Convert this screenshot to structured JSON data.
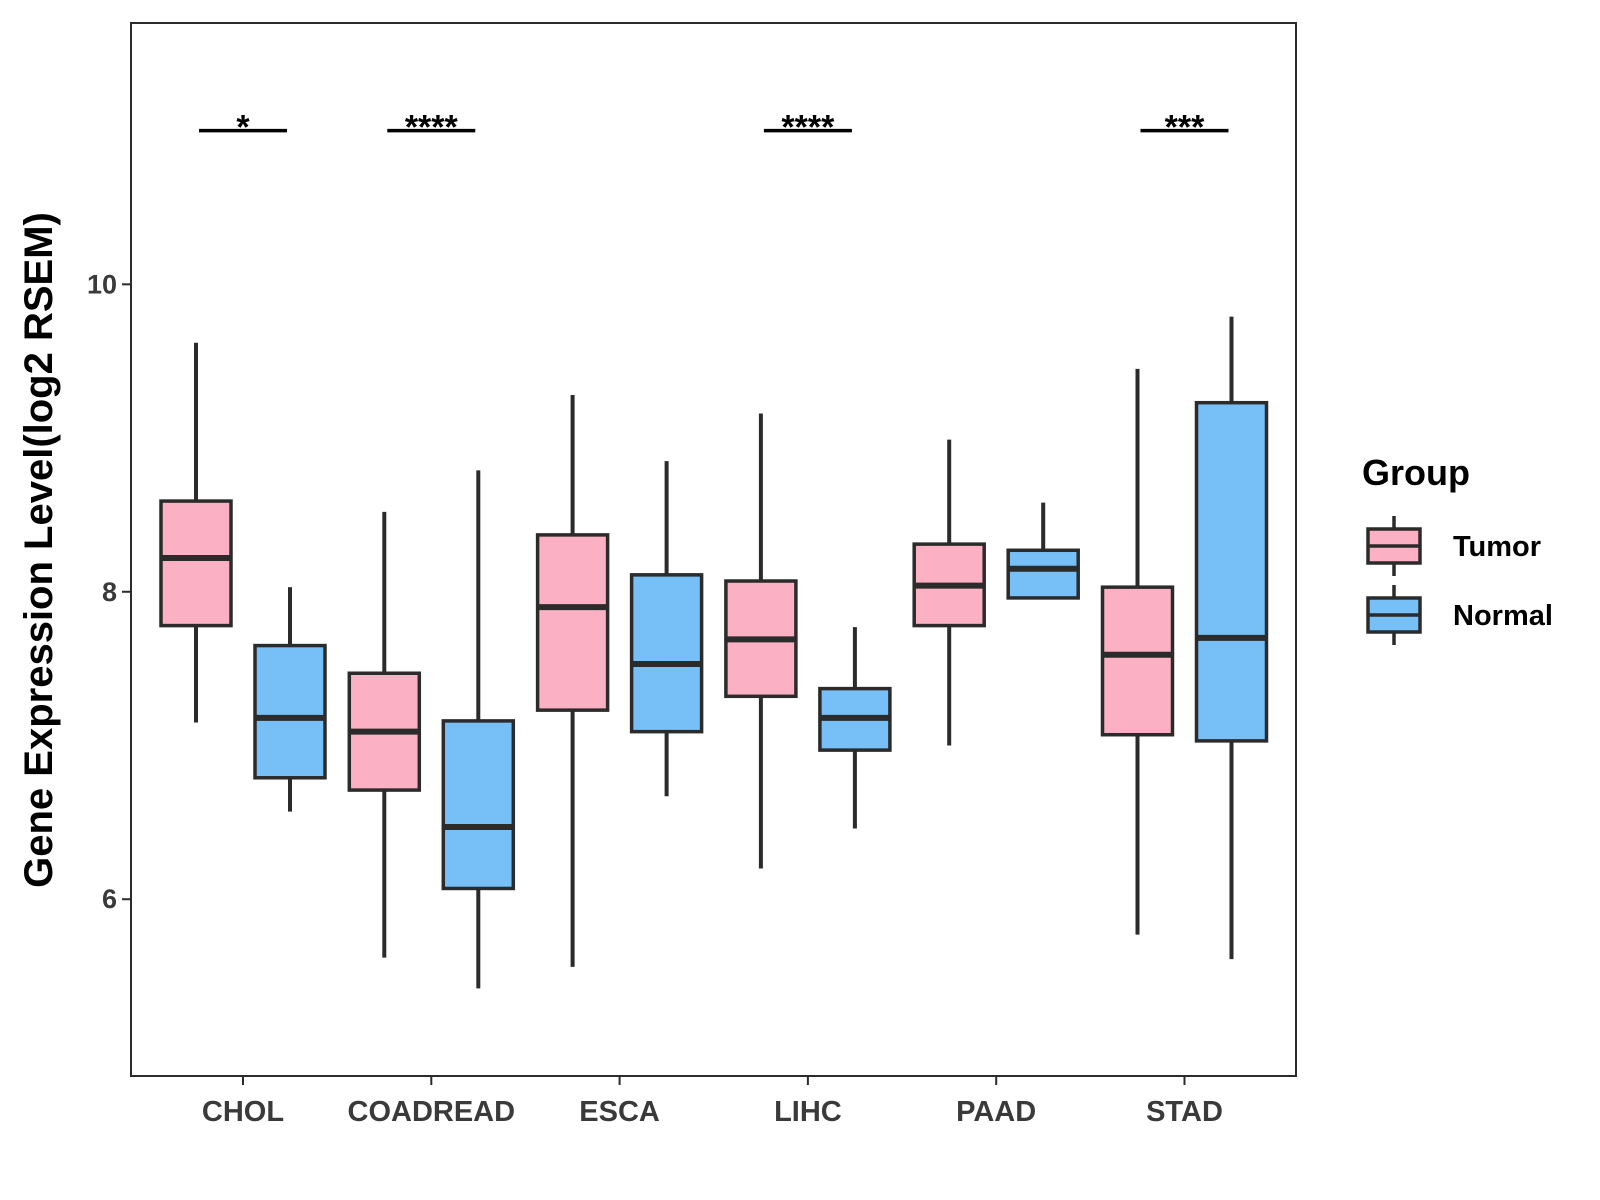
{
  "chart_data": {
    "type": "boxplot",
    "title": "",
    "xlabel": "",
    "ylabel": "Gene Expression Level(log2 RSEM)",
    "ylim": [
      4.85,
      11.7
    ],
    "yticks": [
      6,
      8,
      10
    ],
    "grid": false,
    "legend": {
      "title": "Group",
      "placement": "right",
      "entries": [
        {
          "name": "Tumor",
          "color": "#FBB1C3"
        },
        {
          "name": "Normal",
          "color": "#76C0F7"
        }
      ]
    },
    "categories": [
      "CHOL",
      "COADREAD",
      "ESCA",
      "LIHC",
      "PAAD",
      "STAD"
    ],
    "series": [
      {
        "name": "Tumor",
        "color": "#FBB1C3",
        "boxes": [
          {
            "category": "CHOL",
            "whisker_low": 7.15,
            "q1": 7.78,
            "median": 8.22,
            "q3": 8.59,
            "whisker_high": 9.62
          },
          {
            "category": "COADREAD",
            "whisker_low": 5.62,
            "q1": 6.71,
            "median": 7.09,
            "q3": 7.47,
            "whisker_high": 8.52
          },
          {
            "category": "ESCA",
            "whisker_low": 5.56,
            "q1": 7.23,
            "median": 7.9,
            "q3": 8.37,
            "whisker_high": 9.28
          },
          {
            "category": "LIHC",
            "whisker_low": 6.2,
            "q1": 7.32,
            "median": 7.69,
            "q3": 8.07,
            "whisker_high": 9.16
          },
          {
            "category": "PAAD",
            "whisker_low": 7.0,
            "q1": 7.78,
            "median": 8.04,
            "q3": 8.31,
            "whisker_high": 8.99
          },
          {
            "category": "STAD",
            "whisker_low": 5.77,
            "q1": 7.07,
            "median": 7.59,
            "q3": 8.03,
            "whisker_high": 9.45
          }
        ]
      },
      {
        "name": "Normal",
        "color": "#76C0F7",
        "boxes": [
          {
            "category": "CHOL",
            "whisker_low": 6.57,
            "q1": 6.79,
            "median": 7.18,
            "q3": 7.65,
            "whisker_high": 8.03
          },
          {
            "category": "COADREAD",
            "whisker_low": 5.42,
            "q1": 6.07,
            "median": 6.47,
            "q3": 7.16,
            "whisker_high": 8.79
          },
          {
            "category": "ESCA",
            "whisker_low": 6.67,
            "q1": 7.09,
            "median": 7.53,
            "q3": 8.11,
            "whisker_high": 8.85
          },
          {
            "category": "LIHC",
            "whisker_low": 6.46,
            "q1": 6.97,
            "median": 7.18,
            "q3": 7.37,
            "whisker_high": 7.77
          },
          {
            "category": "PAAD",
            "whisker_low": 7.96,
            "q1": 7.96,
            "median": 8.15,
            "q3": 8.27,
            "whisker_high": 8.58
          },
          {
            "category": "STAD",
            "whisker_low": 5.61,
            "q1": 7.03,
            "median": 7.7,
            "q3": 9.23,
            "whisker_high": 9.79
          }
        ]
      }
    ],
    "significance": [
      {
        "category": "CHOL",
        "label": "*",
        "y": 11.0
      },
      {
        "category": "COADREAD",
        "label": "****",
        "y": 11.0
      },
      {
        "category": "LIHC",
        "label": "****",
        "y": 11.0
      },
      {
        "category": "STAD",
        "label": "***",
        "y": 11.0
      }
    ]
  }
}
